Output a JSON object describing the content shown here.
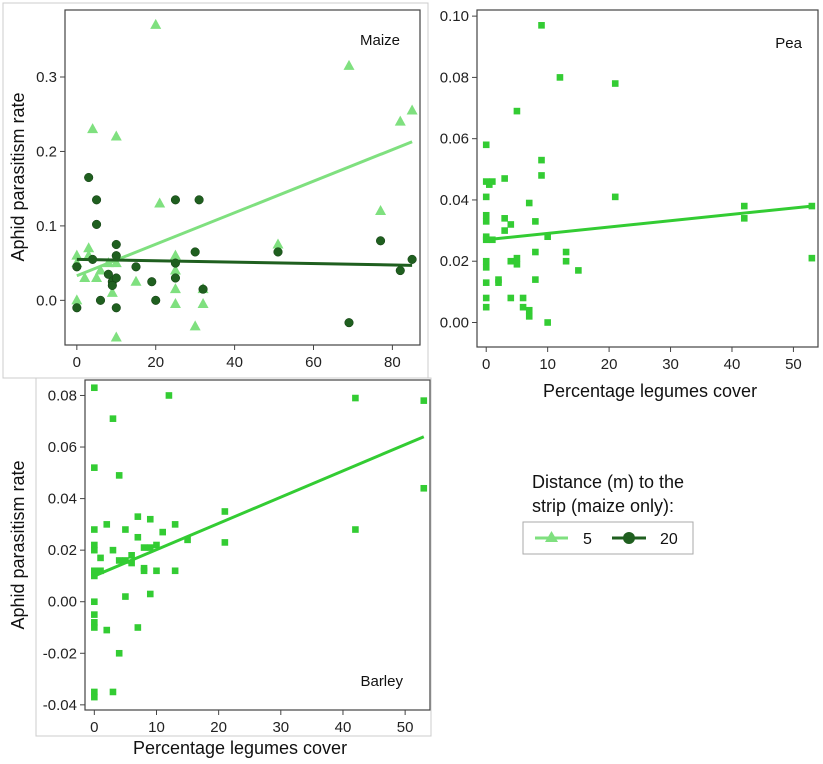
{
  "legend": {
    "title_line1": "Distance (m) to the",
    "title_line2": "strip (maize only):",
    "items": [
      {
        "label": "5",
        "color": "#7fe07f",
        "marker": "triangle"
      },
      {
        "label": "20",
        "color": "#1f5f1f",
        "marker": "circle"
      }
    ]
  },
  "chart_data": [
    {
      "type": "scatter",
      "panel_title": "Maize",
      "ylabel": "Aphid parasitism rate",
      "xlabel": "",
      "xlim": [
        -3,
        87
      ],
      "ylim": [
        -0.06,
        0.39
      ],
      "xticks": [
        0,
        20,
        40,
        60,
        80
      ],
      "yticks": [
        0.0,
        0.1,
        0.2,
        0.3
      ],
      "ytick_labels": [
        "0.0",
        "0.1",
        "0.2",
        "0.3"
      ],
      "series": [
        {
          "name": "5",
          "color": "#7fe07f",
          "marker": "triangle",
          "x": [
            0,
            0,
            0,
            2,
            3,
            3,
            4,
            5,
            6,
            8,
            9,
            10,
            10,
            10,
            15,
            20,
            21,
            25,
            25,
            25,
            25,
            30,
            32,
            32,
            51,
            69,
            77,
            82,
            85
          ],
          "y": [
            0.0,
            0.05,
            0.06,
            0.03,
            0.06,
            0.07,
            0.23,
            0.03,
            0.04,
            0.05,
            0.01,
            0.22,
            -0.05,
            0.05,
            0.025,
            0.37,
            0.13,
            0.06,
            0.015,
            -0.005,
            0.04,
            -0.035,
            0.015,
            -0.005,
            0.075,
            0.315,
            0.12,
            0.24,
            0.255
          ],
          "fit": [
            [
              0,
              0.033
            ],
            [
              85,
              0.213
            ]
          ]
        },
        {
          "name": "20",
          "color": "#1f5f1f",
          "marker": "circle",
          "x": [
            0,
            0,
            3,
            4,
            5,
            5,
            6,
            8,
            9,
            9,
            10,
            10,
            10,
            10,
            15,
            19,
            20,
            25,
            25,
            25,
            30,
            31,
            32,
            51,
            69,
            77,
            82,
            85
          ],
          "y": [
            -0.01,
            0.045,
            0.165,
            0.055,
            0.135,
            0.102,
            0.0,
            0.035,
            0.025,
            0.02,
            0.075,
            0.06,
            0.03,
            -0.01,
            0.045,
            0.025,
            0.0,
            0.135,
            0.05,
            0.03,
            0.065,
            0.135,
            0.015,
            0.065,
            -0.03,
            0.08,
            0.04,
            0.055
          ],
          "fit": [
            [
              0,
              0.055
            ],
            [
              85,
              0.047
            ]
          ]
        }
      ]
    },
    {
      "type": "scatter",
      "panel_title": "Pea",
      "ylabel": "",
      "xlabel": "Percentage legumes cover",
      "xlim": [
        -1.5,
        54
      ],
      "ylim": [
        -0.008,
        0.102
      ],
      "xticks": [
        0,
        10,
        20,
        30,
        40,
        50
      ],
      "yticks": [
        0.0,
        0.02,
        0.04,
        0.06,
        0.08,
        0.1
      ],
      "ytick_labels": [
        "0.00",
        "0.02",
        "0.04",
        "0.06",
        "0.08",
        "0.10"
      ],
      "series": [
        {
          "name": "",
          "color": "#33cc33",
          "marker": "square",
          "x": [
            0,
            0,
            0,
            0,
            0,
            0,
            0,
            0,
            0,
            0,
            0,
            0,
            0.5,
            1,
            1,
            2,
            2,
            3,
            3,
            3,
            4,
            4,
            4,
            5,
            5,
            5,
            6,
            6,
            7,
            7,
            7,
            8,
            8,
            8,
            9,
            9,
            9,
            10,
            10,
            12,
            13,
            13,
            15,
            21,
            21,
            42,
            42,
            53,
            53
          ],
          "y": [
            0.058,
            0.046,
            0.035,
            0.033,
            0.028,
            0.02,
            0.018,
            0.013,
            0.008,
            0.005,
            0.041,
            0.027,
            0.045,
            0.046,
            0.027,
            0.014,
            0.013,
            0.047,
            0.034,
            0.03,
            0.032,
            0.02,
            0.008,
            0.069,
            0.021,
            0.019,
            0.008,
            0.005,
            0.039,
            0.004,
            0.002,
            0.033,
            0.014,
            0.023,
            0.097,
            0.053,
            0.048,
            0.028,
            0.0,
            0.08,
            0.023,
            0.02,
            0.017,
            0.078,
            0.041,
            0.038,
            0.034,
            0.038,
            0.021
          ],
          "fit": [
            [
              0,
              0.027
            ],
            [
              53,
              0.038
            ]
          ]
        }
      ]
    },
    {
      "type": "scatter",
      "panel_title": "Barley",
      "ylabel": "Aphid parasitism rate",
      "xlabel": "Percentage legumes cover",
      "xlim": [
        -1.5,
        54
      ],
      "ylim": [
        -0.042,
        0.086
      ],
      "xticks": [
        0,
        10,
        20,
        30,
        40,
        50
      ],
      "yticks": [
        -0.04,
        -0.02,
        0.0,
        0.02,
        0.04,
        0.06,
        0.08
      ],
      "ytick_labels": [
        "-0.04",
        "-0.02",
        "0.00",
        "0.02",
        "0.04",
        "0.06",
        "0.08"
      ],
      "series": [
        {
          "name": "",
          "color": "#33cc33",
          "marker": "square",
          "x": [
            0,
            0,
            0,
            0,
            0,
            0,
            0,
            0,
            0,
            0,
            0,
            0,
            0,
            0,
            1,
            1,
            2,
            2,
            3,
            3,
            3,
            4,
            4,
            4,
            5,
            5,
            5,
            6,
            6,
            7,
            7,
            7,
            8,
            8,
            8,
            9,
            9,
            9,
            10,
            10,
            11,
            12,
            13,
            13,
            15,
            21,
            21,
            42,
            42,
            53,
            53
          ],
          "y": [
            0.083,
            0.052,
            0.028,
            0.022,
            0.02,
            0.011,
            0.01,
            -0.005,
            -0.008,
            -0.01,
            -0.035,
            -0.037,
            0.012,
            0.0,
            0.017,
            0.012,
            0.03,
            -0.011,
            0.071,
            0.02,
            -0.035,
            0.049,
            0.016,
            -0.02,
            0.028,
            0.016,
            0.002,
            0.018,
            0.015,
            0.033,
            0.025,
            -0.01,
            0.021,
            0.013,
            0.012,
            0.032,
            0.021,
            0.003,
            0.022,
            0.012,
            0.027,
            0.08,
            0.03,
            0.012,
            0.024,
            0.035,
            0.023,
            0.079,
            0.028,
            0.078,
            0.044
          ],
          "fit": [
            [
              0,
              0.01
            ],
            [
              53,
              0.064
            ]
          ]
        }
      ]
    }
  ]
}
